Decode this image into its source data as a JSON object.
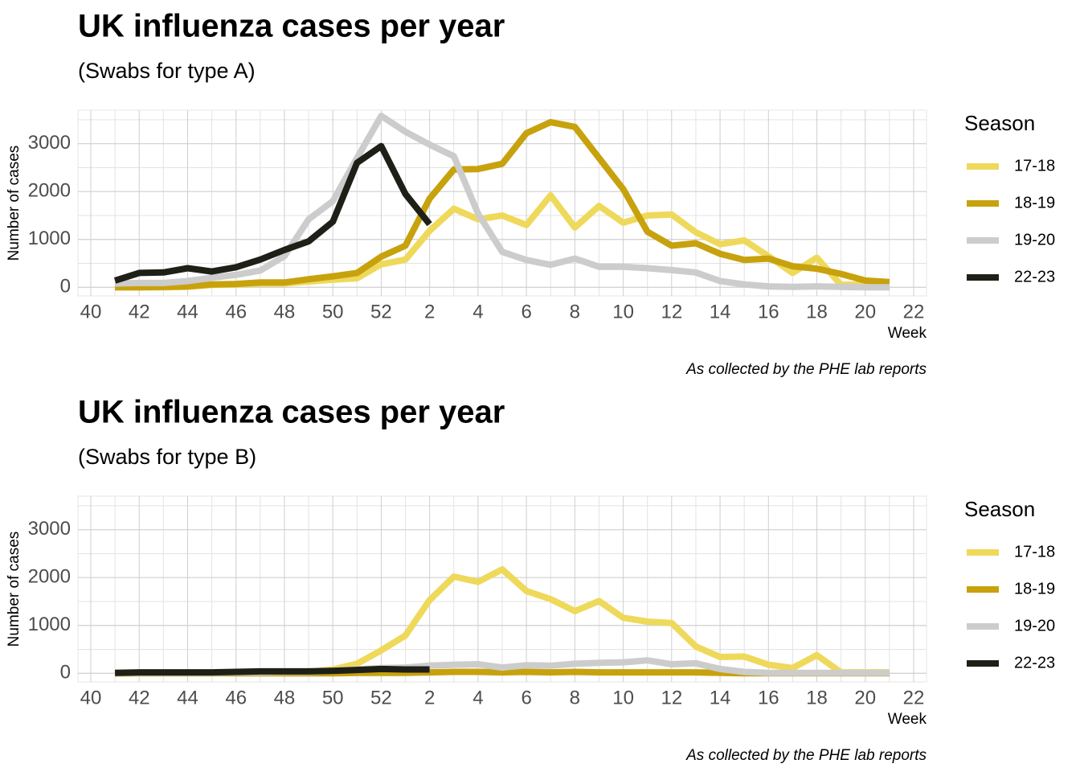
{
  "chart_data": [
    {
      "type": "line",
      "title": "UK influenza cases per year",
      "subtitle": "(Swabs for type A)",
      "x_label": "Week",
      "y_label": "Number of cases",
      "caption": "As collected by the PHE lab reports",
      "legend_title": "Season",
      "categories": [
        "40",
        null,
        "42",
        null,
        "44",
        null,
        "46",
        null,
        "48",
        null,
        "50",
        null,
        "52",
        null,
        "2",
        null,
        "4",
        null,
        "6",
        null,
        "8",
        null,
        "10",
        null,
        "12",
        null,
        "14",
        null,
        "16",
        null,
        "18",
        null,
        "20",
        null,
        "22"
      ],
      "ylim": [
        -180,
        3700
      ],
      "yticks": [
        0,
        1000,
        2000,
        3000
      ],
      "grid": true,
      "series": [
        {
          "name": "17-18",
          "color": "#eed95b",
          "values": [
            null,
            0,
            0,
            0,
            10,
            50,
            60,
            80,
            80,
            120,
            160,
            190,
            480,
            580,
            1180,
            1640,
            1420,
            1500,
            1300,
            1920,
            1250,
            1700,
            1350,
            1500,
            1520,
            1150,
            900,
            980,
            650,
            300,
            620,
            50,
            60,
            50,
            null
          ]
        },
        {
          "name": "18-19",
          "color": "#c7a20d",
          "values": [
            null,
            0,
            0,
            10,
            20,
            60,
            70,
            100,
            100,
            170,
            230,
            300,
            640,
            870,
            1850,
            2460,
            2470,
            2580,
            3220,
            3450,
            3350,
            2700,
            2050,
            1160,
            870,
            920,
            700,
            570,
            600,
            440,
            390,
            280,
            140,
            110,
            null
          ]
        },
        {
          "name": "19-20",
          "color": "#cccccc",
          "values": [
            null,
            80,
            90,
            90,
            130,
            200,
            260,
            350,
            650,
            1420,
            1800,
            2700,
            3580,
            3250,
            2980,
            2740,
            1540,
            740,
            570,
            470,
            600,
            430,
            430,
            400,
            360,
            310,
            130,
            60,
            20,
            10,
            20,
            10,
            0,
            0,
            null
          ]
        },
        {
          "name": "22-23",
          "color": "#1e2018",
          "values": [
            null,
            140,
            300,
            310,
            400,
            330,
            420,
            580,
            780,
            960,
            1370,
            2600,
            2950,
            1950,
            1320,
            null,
            null,
            null,
            null,
            null,
            null,
            null,
            null,
            null,
            null,
            null,
            null,
            null,
            null,
            null,
            null,
            null,
            null,
            null,
            null
          ]
        }
      ]
    },
    {
      "type": "line",
      "title": "UK influenza cases per year",
      "subtitle": "(Swabs for type B)",
      "x_label": "Week",
      "y_label": "Number of cases",
      "caption": "As collected by the PHE lab reports",
      "legend_title": "Season",
      "categories": [
        "40",
        null,
        "42",
        null,
        "44",
        null,
        "46",
        null,
        "48",
        null,
        "50",
        null,
        "52",
        null,
        "2",
        null,
        "4",
        null,
        "6",
        null,
        "8",
        null,
        "10",
        null,
        "12",
        null,
        "14",
        null,
        "16",
        null,
        "18",
        null,
        "20",
        null,
        "22"
      ],
      "ylim": [
        -180,
        3700
      ],
      "yticks": [
        0,
        1000,
        2000,
        3000
      ],
      "grid": true,
      "series": [
        {
          "name": "17-18",
          "color": "#eed95b",
          "values": [
            null,
            0,
            0,
            0,
            0,
            0,
            10,
            10,
            20,
            30,
            80,
            200,
            480,
            790,
            1530,
            2020,
            1910,
            2170,
            1720,
            1550,
            1300,
            1510,
            1160,
            1080,
            1050,
            560,
            340,
            350,
            180,
            110,
            380,
            20,
            20,
            20,
            null
          ]
        },
        {
          "name": "18-19",
          "color": "#c7a20d",
          "values": [
            null,
            0,
            0,
            0,
            0,
            0,
            0,
            0,
            0,
            0,
            0,
            10,
            10,
            10,
            20,
            30,
            30,
            20,
            30,
            20,
            30,
            20,
            20,
            20,
            20,
            20,
            10,
            0,
            0,
            0,
            0,
            0,
            0,
            0,
            null
          ]
        },
        {
          "name": "19-20",
          "color": "#cccccc",
          "values": [
            null,
            10,
            10,
            10,
            10,
            10,
            20,
            20,
            30,
            30,
            50,
            80,
            110,
            120,
            160,
            180,
            190,
            120,
            170,
            160,
            200,
            220,
            230,
            270,
            190,
            210,
            90,
            30,
            10,
            10,
            10,
            10,
            10,
            10,
            null
          ]
        },
        {
          "name": "22-23",
          "color": "#1e2018",
          "values": [
            null,
            10,
            20,
            20,
            20,
            20,
            30,
            40,
            40,
            40,
            50,
            70,
            90,
            80,
            80,
            null,
            null,
            null,
            null,
            null,
            null,
            null,
            null,
            null,
            null,
            null,
            null,
            null,
            null,
            null,
            null,
            null,
            null,
            null,
            null
          ]
        }
      ]
    }
  ]
}
